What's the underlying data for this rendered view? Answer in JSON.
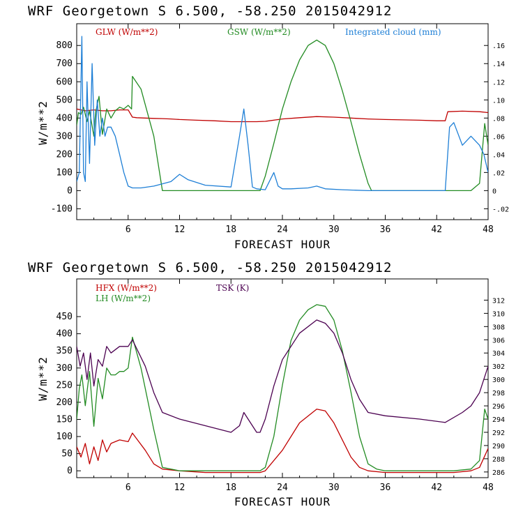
{
  "colors": {
    "glw": "#c00000",
    "gsw": "#228b22",
    "cloud": "#1e7fd6",
    "hfx": "#c00000",
    "lh": "#228b22",
    "tsk": "#4b0050"
  },
  "chart_data": [
    {
      "type": "line",
      "title": "WRF   Georgetown S   6.500, -58.250  2015042912",
      "xlabel": "FORECAST HOUR",
      "ylabel": "W/m**2",
      "xlim": [
        0,
        48
      ],
      "ylim": [
        -160,
        920
      ],
      "y2lim": [
        -0.032,
        0.184
      ],
      "x_ticks": [
        "6",
        "12",
        "18",
        "24",
        "30",
        "36",
        "42",
        "48"
      ],
      "y_ticks": [
        "-100",
        "0",
        "100",
        "200",
        "300",
        "400",
        "500",
        "600",
        "700",
        "800"
      ],
      "y2_ticks": [
        "-.02",
        "0",
        ".02",
        ".04",
        ".06",
        ".08",
        ".10",
        ".12",
        ".14",
        ".16"
      ],
      "series": [
        {
          "name": "GLW (W/m**2)",
          "label": "GLW (W/m**2)",
          "color": "#c00000",
          "axis": "left",
          "x": [
            0,
            1,
            2,
            3,
            4,
            5,
            6,
            6.5,
            7,
            8,
            9,
            10,
            11,
            12,
            14,
            16,
            18,
            20,
            21,
            22,
            24,
            26,
            28,
            30,
            32,
            34,
            36,
            38,
            40,
            42,
            43,
            43.3,
            45,
            47,
            48
          ],
          "y": [
            450,
            440,
            445,
            440,
            440,
            445,
            445,
            405,
            402,
            400,
            398,
            397,
            395,
            392,
            388,
            385,
            380,
            380,
            380,
            382,
            395,
            402,
            408,
            405,
            400,
            395,
            392,
            390,
            388,
            385,
            385,
            435,
            438,
            435,
            430
          ]
        },
        {
          "name": "GSW (W/m**2)",
          "label": "GSW (W/m**2)",
          "color": "#228b22",
          "axis": "left",
          "x": [
            0,
            0.2,
            0.5,
            0.8,
            1.2,
            1.5,
            2,
            2.2,
            2.6,
            3,
            3.5,
            4,
            4.5,
            5,
            5.5,
            6,
            6.4,
            6.5,
            7.5,
            9,
            10,
            12,
            15,
            18,
            21.4,
            22,
            23,
            24,
            25,
            26,
            27,
            28,
            29,
            30,
            31,
            32,
            33,
            34,
            34.4,
            36,
            40,
            44,
            46,
            47,
            47.6,
            48
          ],
          "y": [
            360,
            430,
            420,
            460,
            380,
            440,
            300,
            430,
            520,
            310,
            450,
            400,
            440,
            460,
            450,
            470,
            450,
            630,
            560,
            300,
            0,
            0,
            0,
            0,
            0,
            80,
            260,
            450,
            600,
            720,
            800,
            830,
            800,
            700,
            550,
            380,
            200,
            40,
            0,
            0,
            0,
            0,
            0,
            40,
            370,
            250
          ]
        },
        {
          "name": "Integrated cloud (mm)",
          "label": "Integrated cloud (mm)",
          "color": "#1e7fd6",
          "axis": "right",
          "x": [
            0,
            0.3,
            0.6,
            0.8,
            1,
            1.2,
            1.5,
            1.8,
            2.1,
            2.4,
            2.7,
            3,
            3.3,
            3.6,
            4,
            4.5,
            5,
            5.5,
            6,
            6.5,
            7.5,
            9,
            11,
            12,
            13,
            15,
            18,
            19,
            19.5,
            20,
            20.5,
            21,
            22,
            23,
            23.5,
            24,
            25,
            27,
            28,
            29,
            31,
            34,
            37,
            40,
            43,
            43.5,
            44,
            45,
            46,
            47,
            47.5,
            48
          ],
          "y": [
            0.01,
            0.02,
            0.17,
            0.02,
            0.01,
            0.12,
            0.03,
            0.14,
            0.05,
            0.1,
            0.06,
            0.08,
            0.06,
            0.07,
            0.07,
            0.06,
            0.04,
            0.02,
            0.005,
            0.003,
            0.003,
            0.005,
            0.01,
            0.018,
            0.012,
            0.006,
            0.004,
            0.06,
            0.09,
            0.05,
            0.004,
            0.002,
            0.001,
            0.02,
            0.005,
            0.002,
            0.002,
            0.003,
            0.005,
            0.002,
            0.001,
            0,
            0,
            0,
            0,
            0.07,
            0.075,
            0.05,
            0.06,
            0.05,
            0.04,
            0.02
          ]
        }
      ]
    },
    {
      "type": "line",
      "title": "WRF   Georgetown S   6.500, -58.250  2015042912",
      "xlabel": "FORECAST HOUR",
      "ylabel": "W/m**2",
      "xlim": [
        0,
        48
      ],
      "ylim": [
        -20,
        560
      ],
      "y2lim": [
        285.14,
        315.21
      ],
      "x_ticks": [
        "6",
        "12",
        "18",
        "24",
        "30",
        "36",
        "42",
        "48"
      ],
      "y_ticks": [
        "0",
        "50",
        "100",
        "150",
        "200",
        "250",
        "300",
        "350",
        "400",
        "450"
      ],
      "y2_ticks": [
        "286",
        "288",
        "290",
        "292",
        "294",
        "296",
        "298",
        "300",
        "302",
        "304",
        "306",
        "308",
        "310",
        "312"
      ],
      "series": [
        {
          "name": "HFX (W/m**2)",
          "label": "HFX (W/m**2)",
          "color": "#c00000",
          "axis": "left",
          "x": [
            0,
            0.5,
            1,
            1.5,
            2,
            2.5,
            3,
            3.5,
            4,
            5,
            6,
            6.5,
            8,
            9,
            10,
            12,
            15,
            18,
            21.4,
            22,
            24,
            26,
            28,
            29,
            30,
            31,
            32,
            33,
            34,
            36,
            40,
            44,
            46,
            47,
            48
          ],
          "y": [
            70,
            40,
            80,
            20,
            70,
            30,
            90,
            55,
            80,
            90,
            85,
            110,
            60,
            20,
            5,
            0,
            -5,
            -5,
            -5,
            0,
            60,
            140,
            180,
            175,
            140,
            90,
            40,
            10,
            0,
            -5,
            -5,
            -5,
            0,
            10,
            65
          ]
        },
        {
          "name": "LH (W/m**2)",
          "label": "LH (W/m**2)",
          "color": "#228b22",
          "axis": "left",
          "x": [
            0,
            0.3,
            0.6,
            1,
            1.5,
            2,
            2.5,
            3,
            3.5,
            4,
            4.5,
            5,
            5.5,
            6,
            6.5,
            7.5,
            9,
            10,
            12,
            15,
            18,
            21.4,
            22,
            23,
            24,
            25,
            26,
            27,
            28,
            29,
            30,
            31,
            32,
            33,
            34,
            35,
            36,
            40,
            44,
            46,
            47,
            47.6,
            48
          ],
          "y": [
            150,
            240,
            280,
            190,
            290,
            130,
            270,
            210,
            300,
            280,
            280,
            290,
            290,
            300,
            390,
            300,
            120,
            10,
            0,
            0,
            0,
            0,
            10,
            100,
            250,
            380,
            440,
            470,
            485,
            480,
            440,
            350,
            230,
            100,
            20,
            5,
            0,
            0,
            0,
            5,
            30,
            180,
            150
          ]
        },
        {
          "name": "TSK (K)",
          "label": "TSK (K)",
          "color": "#4b0050",
          "axis": "right",
          "x": [
            0,
            0.4,
            0.8,
            1.2,
            1.6,
            2,
            2.5,
            3,
            3.5,
            4,
            5,
            6,
            6.5,
            8,
            9,
            10,
            12,
            15,
            18,
            19,
            19.5,
            20,
            21,
            21.4,
            22,
            23,
            24,
            26,
            28,
            29,
            30,
            31,
            32,
            33,
            34,
            36,
            40,
            43,
            45,
            46,
            47,
            48
          ],
          "y": [
            305,
            302,
            304,
            300,
            304,
            299,
            303,
            302,
            305,
            304,
            305,
            305,
            306,
            302,
            298,
            295,
            294,
            293,
            292,
            293,
            295,
            294,
            292,
            292,
            294,
            299,
            303,
            307,
            309,
            308.5,
            307,
            304,
            300,
            297,
            295,
            294.5,
            294,
            293.5,
            295,
            296,
            298,
            302
          ]
        }
      ]
    }
  ]
}
